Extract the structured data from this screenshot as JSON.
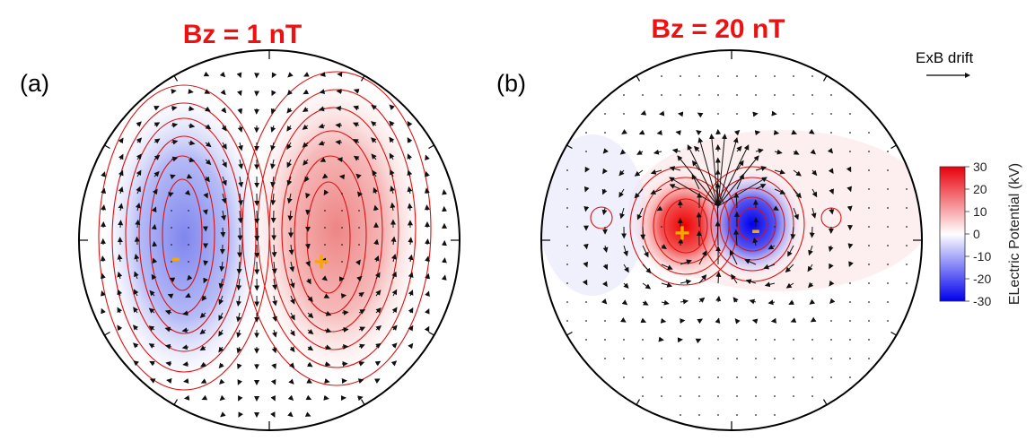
{
  "chart_data": [
    {
      "type": "heatmap",
      "title": "Bz = 1 nT",
      "panel_label": "(a)",
      "polarity_markers": [
        {
          "sign": "-",
          "region": "dusk"
        },
        {
          "sign": "+",
          "region": "dawn"
        }
      ],
      "peak_potential_kV": {
        "negative": -12,
        "positive": 12
      }
    },
    {
      "type": "heatmap",
      "title": "Bz = 20 nT",
      "panel_label": "(b)",
      "polarity_markers": [
        {
          "sign": "+",
          "region": "left-center"
        },
        {
          "sign": "-",
          "region": "right-center"
        }
      ],
      "peak_potential_kV": {
        "negative": -30,
        "positive": 30
      }
    }
  ],
  "colorbar": {
    "label": "ELectric Potential (kV)",
    "ticks": [
      30,
      20,
      10,
      0,
      -10,
      -20,
      -30
    ],
    "range": [
      -30,
      30
    ],
    "colors": {
      "max": "#e8000b",
      "mid": "#ffffff",
      "min": "#0000ee"
    }
  },
  "legend": {
    "drift_label": "ExB drift"
  },
  "colors": {
    "title": "#ee1111",
    "marker": "#f5a800",
    "contour": "#dd1111",
    "vector": "#111111"
  }
}
